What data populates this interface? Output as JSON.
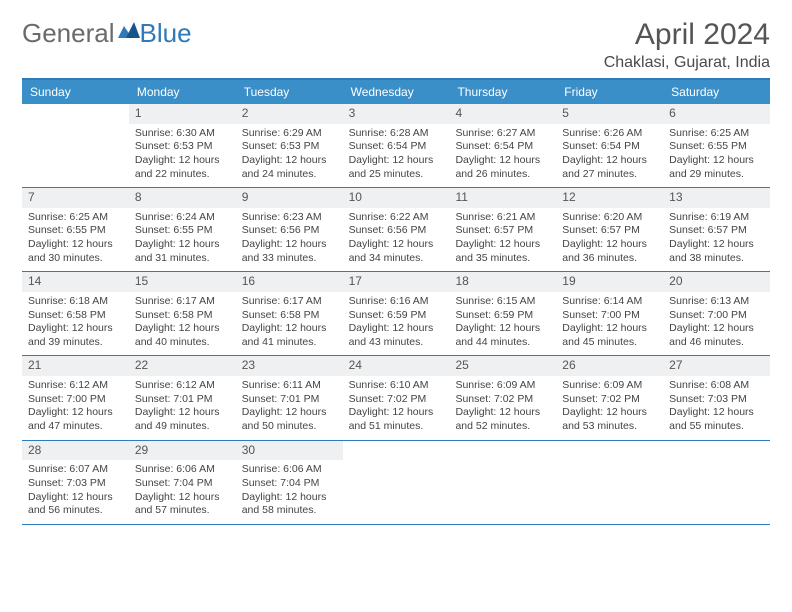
{
  "logo": {
    "text_a": "General",
    "text_b": "Blue"
  },
  "header": {
    "month": "April 2024",
    "location": "Chaklasi, Gujarat, India"
  },
  "colors": {
    "header_bar": "#3a8fc9",
    "border": "#2f7ab8",
    "daynum_bg": "#eef0f1",
    "text": "#444444",
    "logo_gray": "#6b6b6b"
  },
  "weekdays": [
    "Sunday",
    "Monday",
    "Tuesday",
    "Wednesday",
    "Thursday",
    "Friday",
    "Saturday"
  ],
  "weeks": [
    [
      {
        "n": "",
        "sr": "",
        "ss": "",
        "d1": "",
        "d2": ""
      },
      {
        "n": "1",
        "sr": "Sunrise: 6:30 AM",
        "ss": "Sunset: 6:53 PM",
        "d1": "Daylight: 12 hours",
        "d2": "and 22 minutes."
      },
      {
        "n": "2",
        "sr": "Sunrise: 6:29 AM",
        "ss": "Sunset: 6:53 PM",
        "d1": "Daylight: 12 hours",
        "d2": "and 24 minutes."
      },
      {
        "n": "3",
        "sr": "Sunrise: 6:28 AM",
        "ss": "Sunset: 6:54 PM",
        "d1": "Daylight: 12 hours",
        "d2": "and 25 minutes."
      },
      {
        "n": "4",
        "sr": "Sunrise: 6:27 AM",
        "ss": "Sunset: 6:54 PM",
        "d1": "Daylight: 12 hours",
        "d2": "and 26 minutes."
      },
      {
        "n": "5",
        "sr": "Sunrise: 6:26 AM",
        "ss": "Sunset: 6:54 PM",
        "d1": "Daylight: 12 hours",
        "d2": "and 27 minutes."
      },
      {
        "n": "6",
        "sr": "Sunrise: 6:25 AM",
        "ss": "Sunset: 6:55 PM",
        "d1": "Daylight: 12 hours",
        "d2": "and 29 minutes."
      }
    ],
    [
      {
        "n": "7",
        "sr": "Sunrise: 6:25 AM",
        "ss": "Sunset: 6:55 PM",
        "d1": "Daylight: 12 hours",
        "d2": "and 30 minutes."
      },
      {
        "n": "8",
        "sr": "Sunrise: 6:24 AM",
        "ss": "Sunset: 6:55 PM",
        "d1": "Daylight: 12 hours",
        "d2": "and 31 minutes."
      },
      {
        "n": "9",
        "sr": "Sunrise: 6:23 AM",
        "ss": "Sunset: 6:56 PM",
        "d1": "Daylight: 12 hours",
        "d2": "and 33 minutes."
      },
      {
        "n": "10",
        "sr": "Sunrise: 6:22 AM",
        "ss": "Sunset: 6:56 PM",
        "d1": "Daylight: 12 hours",
        "d2": "and 34 minutes."
      },
      {
        "n": "11",
        "sr": "Sunrise: 6:21 AM",
        "ss": "Sunset: 6:57 PM",
        "d1": "Daylight: 12 hours",
        "d2": "and 35 minutes."
      },
      {
        "n": "12",
        "sr": "Sunrise: 6:20 AM",
        "ss": "Sunset: 6:57 PM",
        "d1": "Daylight: 12 hours",
        "d2": "and 36 minutes."
      },
      {
        "n": "13",
        "sr": "Sunrise: 6:19 AM",
        "ss": "Sunset: 6:57 PM",
        "d1": "Daylight: 12 hours",
        "d2": "and 38 minutes."
      }
    ],
    [
      {
        "n": "14",
        "sr": "Sunrise: 6:18 AM",
        "ss": "Sunset: 6:58 PM",
        "d1": "Daylight: 12 hours",
        "d2": "and 39 minutes."
      },
      {
        "n": "15",
        "sr": "Sunrise: 6:17 AM",
        "ss": "Sunset: 6:58 PM",
        "d1": "Daylight: 12 hours",
        "d2": "and 40 minutes."
      },
      {
        "n": "16",
        "sr": "Sunrise: 6:17 AM",
        "ss": "Sunset: 6:58 PM",
        "d1": "Daylight: 12 hours",
        "d2": "and 41 minutes."
      },
      {
        "n": "17",
        "sr": "Sunrise: 6:16 AM",
        "ss": "Sunset: 6:59 PM",
        "d1": "Daylight: 12 hours",
        "d2": "and 43 minutes."
      },
      {
        "n": "18",
        "sr": "Sunrise: 6:15 AM",
        "ss": "Sunset: 6:59 PM",
        "d1": "Daylight: 12 hours",
        "d2": "and 44 minutes."
      },
      {
        "n": "19",
        "sr": "Sunrise: 6:14 AM",
        "ss": "Sunset: 7:00 PM",
        "d1": "Daylight: 12 hours",
        "d2": "and 45 minutes."
      },
      {
        "n": "20",
        "sr": "Sunrise: 6:13 AM",
        "ss": "Sunset: 7:00 PM",
        "d1": "Daylight: 12 hours",
        "d2": "and 46 minutes."
      }
    ],
    [
      {
        "n": "21",
        "sr": "Sunrise: 6:12 AM",
        "ss": "Sunset: 7:00 PM",
        "d1": "Daylight: 12 hours",
        "d2": "and 47 minutes."
      },
      {
        "n": "22",
        "sr": "Sunrise: 6:12 AM",
        "ss": "Sunset: 7:01 PM",
        "d1": "Daylight: 12 hours",
        "d2": "and 49 minutes."
      },
      {
        "n": "23",
        "sr": "Sunrise: 6:11 AM",
        "ss": "Sunset: 7:01 PM",
        "d1": "Daylight: 12 hours",
        "d2": "and 50 minutes."
      },
      {
        "n": "24",
        "sr": "Sunrise: 6:10 AM",
        "ss": "Sunset: 7:02 PM",
        "d1": "Daylight: 12 hours",
        "d2": "and 51 minutes."
      },
      {
        "n": "25",
        "sr": "Sunrise: 6:09 AM",
        "ss": "Sunset: 7:02 PM",
        "d1": "Daylight: 12 hours",
        "d2": "and 52 minutes."
      },
      {
        "n": "26",
        "sr": "Sunrise: 6:09 AM",
        "ss": "Sunset: 7:02 PM",
        "d1": "Daylight: 12 hours",
        "d2": "and 53 minutes."
      },
      {
        "n": "27",
        "sr": "Sunrise: 6:08 AM",
        "ss": "Sunset: 7:03 PM",
        "d1": "Daylight: 12 hours",
        "d2": "and 55 minutes."
      }
    ],
    [
      {
        "n": "28",
        "sr": "Sunrise: 6:07 AM",
        "ss": "Sunset: 7:03 PM",
        "d1": "Daylight: 12 hours",
        "d2": "and 56 minutes."
      },
      {
        "n": "29",
        "sr": "Sunrise: 6:06 AM",
        "ss": "Sunset: 7:04 PM",
        "d1": "Daylight: 12 hours",
        "d2": "and 57 minutes."
      },
      {
        "n": "30",
        "sr": "Sunrise: 6:06 AM",
        "ss": "Sunset: 7:04 PM",
        "d1": "Daylight: 12 hours",
        "d2": "and 58 minutes."
      },
      {
        "n": "",
        "sr": "",
        "ss": "",
        "d1": "",
        "d2": ""
      },
      {
        "n": "",
        "sr": "",
        "ss": "",
        "d1": "",
        "d2": ""
      },
      {
        "n": "",
        "sr": "",
        "ss": "",
        "d1": "",
        "d2": ""
      },
      {
        "n": "",
        "sr": "",
        "ss": "",
        "d1": "",
        "d2": ""
      }
    ]
  ]
}
